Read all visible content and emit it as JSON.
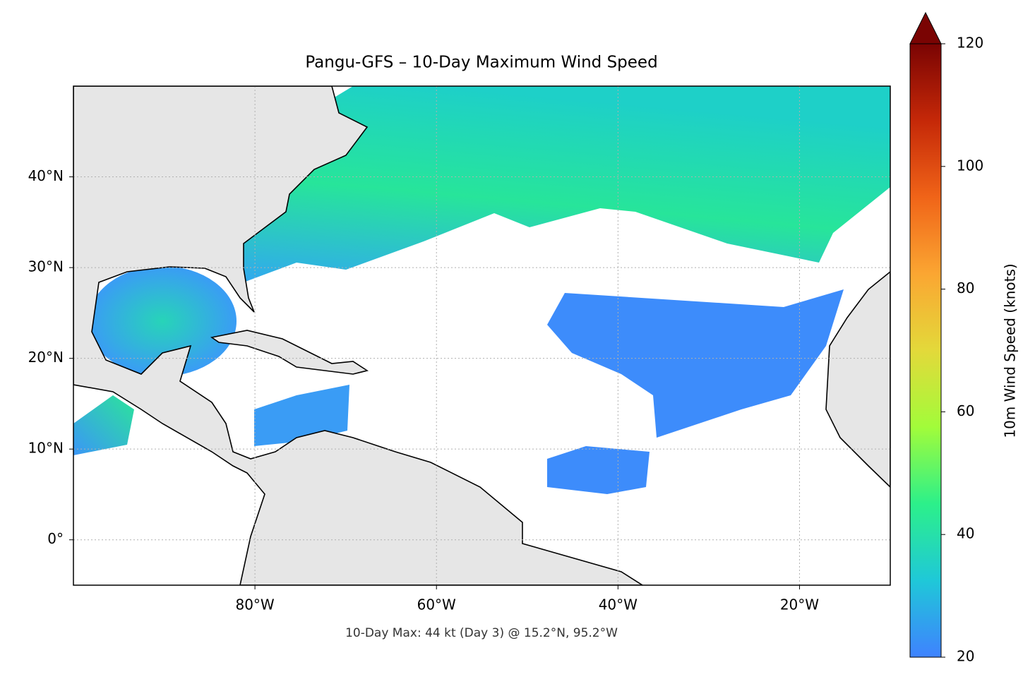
{
  "map": {
    "title": "Pangu-GFS – 10-Day Maximum Wind Speed",
    "footnote": "10-Day Max: 44 kt (Day 3) @ 15.2°N, 95.2°W",
    "xlim": [
      -100,
      -10
    ],
    "ylim": [
      -5,
      50
    ],
    "xticks": [
      {
        "value": -80,
        "label": "80°W"
      },
      {
        "value": -60,
        "label": "60°W"
      },
      {
        "value": -40,
        "label": "40°W"
      },
      {
        "value": -20,
        "label": "20°W"
      }
    ],
    "yticks": [
      {
        "value": 0,
        "label": "0°"
      },
      {
        "value": 10,
        "label": "10°N"
      },
      {
        "value": 20,
        "label": "20°N"
      },
      {
        "value": 30,
        "label": "30°N"
      },
      {
        "value": 40,
        "label": "40°N"
      }
    ],
    "grid": true
  },
  "colorbar": {
    "label": "10m Wind Speed (knots)",
    "lim": [
      20,
      120
    ],
    "ticks": [
      20,
      40,
      60,
      80,
      100,
      120
    ],
    "colormap": [
      "#3f82ff",
      "#1fc8d8",
      "#2cf08a",
      "#a2fc3a",
      "#e3d93a",
      "#fba632",
      "#f06418",
      "#c52808",
      "#7a0403"
    ]
  }
}
